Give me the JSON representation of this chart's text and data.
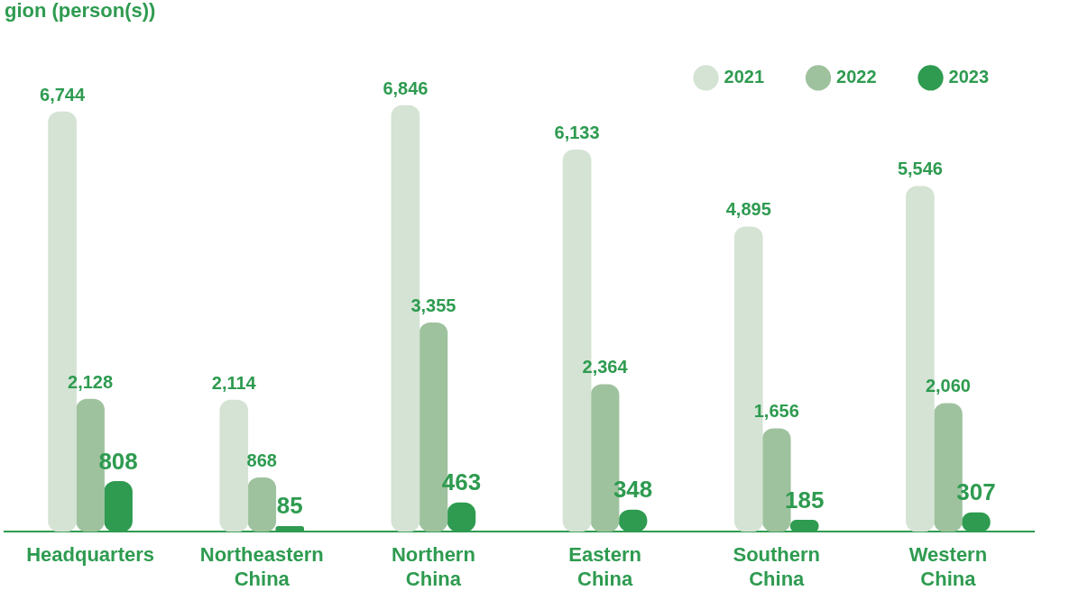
{
  "chart_data": {
    "type": "bar",
    "title": "gion (person(s))",
    "categories": [
      "Headquarters",
      "Northeastern China",
      "Northern China",
      "Eastern China",
      "Southern China",
      "Western China"
    ],
    "series": [
      {
        "name": "2021",
        "color": "#d4e3d4",
        "values": [
          6744,
          2114,
          6846,
          6133,
          4895,
          5546
        ],
        "value_labels": [
          "6,744",
          "2,114",
          "6,846",
          "6,133",
          "4,895",
          "5,546"
        ]
      },
      {
        "name": "2022",
        "color": "#9ec29e",
        "values": [
          2128,
          868,
          3355,
          2364,
          1656,
          2060
        ],
        "value_labels": [
          "2,128",
          "868",
          "3,355",
          "2,364",
          "1,656",
          "2,060"
        ]
      },
      {
        "name": "2023",
        "color": "#2e9b50",
        "values": [
          808,
          85,
          463,
          348,
          185,
          307
        ],
        "value_labels": [
          "808",
          "85",
          "463",
          "348",
          "185",
          "307"
        ]
      }
    ],
    "legend": "top right",
    "grid": false
  }
}
